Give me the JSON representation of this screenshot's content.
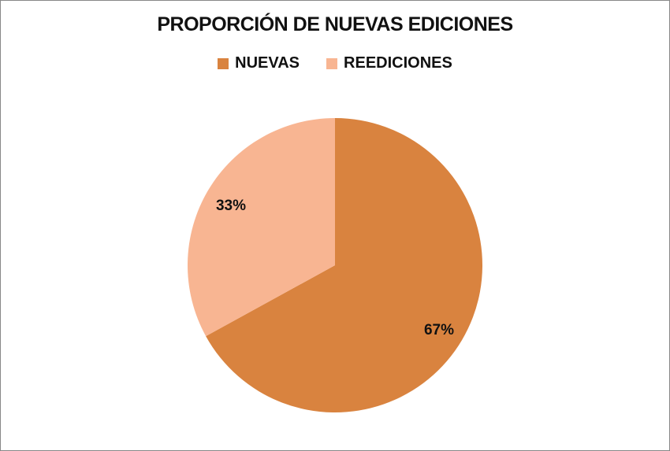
{
  "chart_data": {
    "type": "pie",
    "title": "PROPORCIÓN DE NUEVAS EDICIONES",
    "legend_position": "top",
    "categories": [
      "NUEVAS",
      "REEDICIONES"
    ],
    "values": [
      67,
      33
    ],
    "data_labels": [
      "67%",
      "33%"
    ],
    "colors": [
      "#D9833F",
      "#F8B592"
    ]
  }
}
